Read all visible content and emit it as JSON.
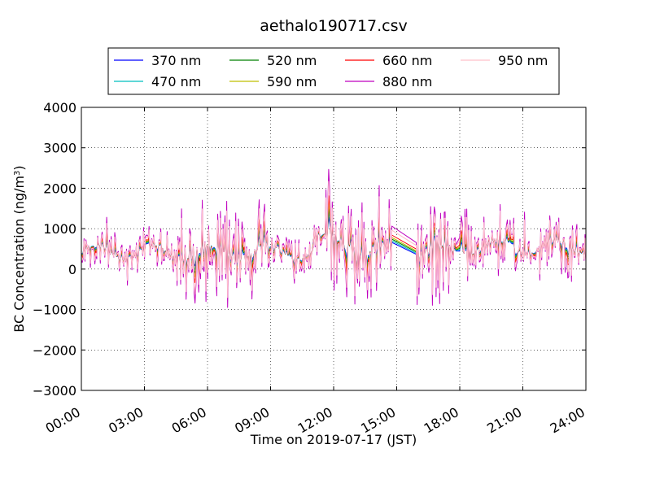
{
  "chart_data": {
    "type": "line",
    "title": "aethalo190717.csv",
    "xlabel": "Time on 2019-07-17 (JST)",
    "ylabel_main": "BC Concentration (ng/m",
    "ylabel_sup": "3",
    "ylabel_close": ")",
    "xlim": [
      "00:00",
      "24:00"
    ],
    "ylim": [
      -3000,
      4000
    ],
    "x_ticks": [
      "00:00",
      "03:00",
      "06:00",
      "09:00",
      "12:00",
      "15:00",
      "18:00",
      "21:00",
      "24:00"
    ],
    "y_ticks": [
      "−3000",
      "−2000",
      "−1000",
      "0",
      "1000",
      "2000",
      "3000",
      "4000"
    ],
    "y_tick_values": [
      -3000,
      -2000,
      -1000,
      0,
      1000,
      2000,
      3000,
      4000
    ],
    "grid": true,
    "legend_position": "top",
    "series": [
      {
        "name": "370 nm",
        "color": "#0000ff",
        "amplitude": 0.35
      },
      {
        "name": "470 nm",
        "color": "#00bfbf",
        "amplitude": 0.45
      },
      {
        "name": "520 nm",
        "color": "#008000",
        "amplitude": 0.55
      },
      {
        "name": "590 nm",
        "color": "#bfbf00",
        "amplitude": 0.65
      },
      {
        "name": "660 nm",
        "color": "#ff0000",
        "amplitude": 0.8
      },
      {
        "name": "880 nm",
        "color": "#bf00bf",
        "amplitude": 1.35
      },
      {
        "name": "950 nm",
        "color": "#ffc0cb",
        "amplitude": 1.1
      }
    ]
  }
}
